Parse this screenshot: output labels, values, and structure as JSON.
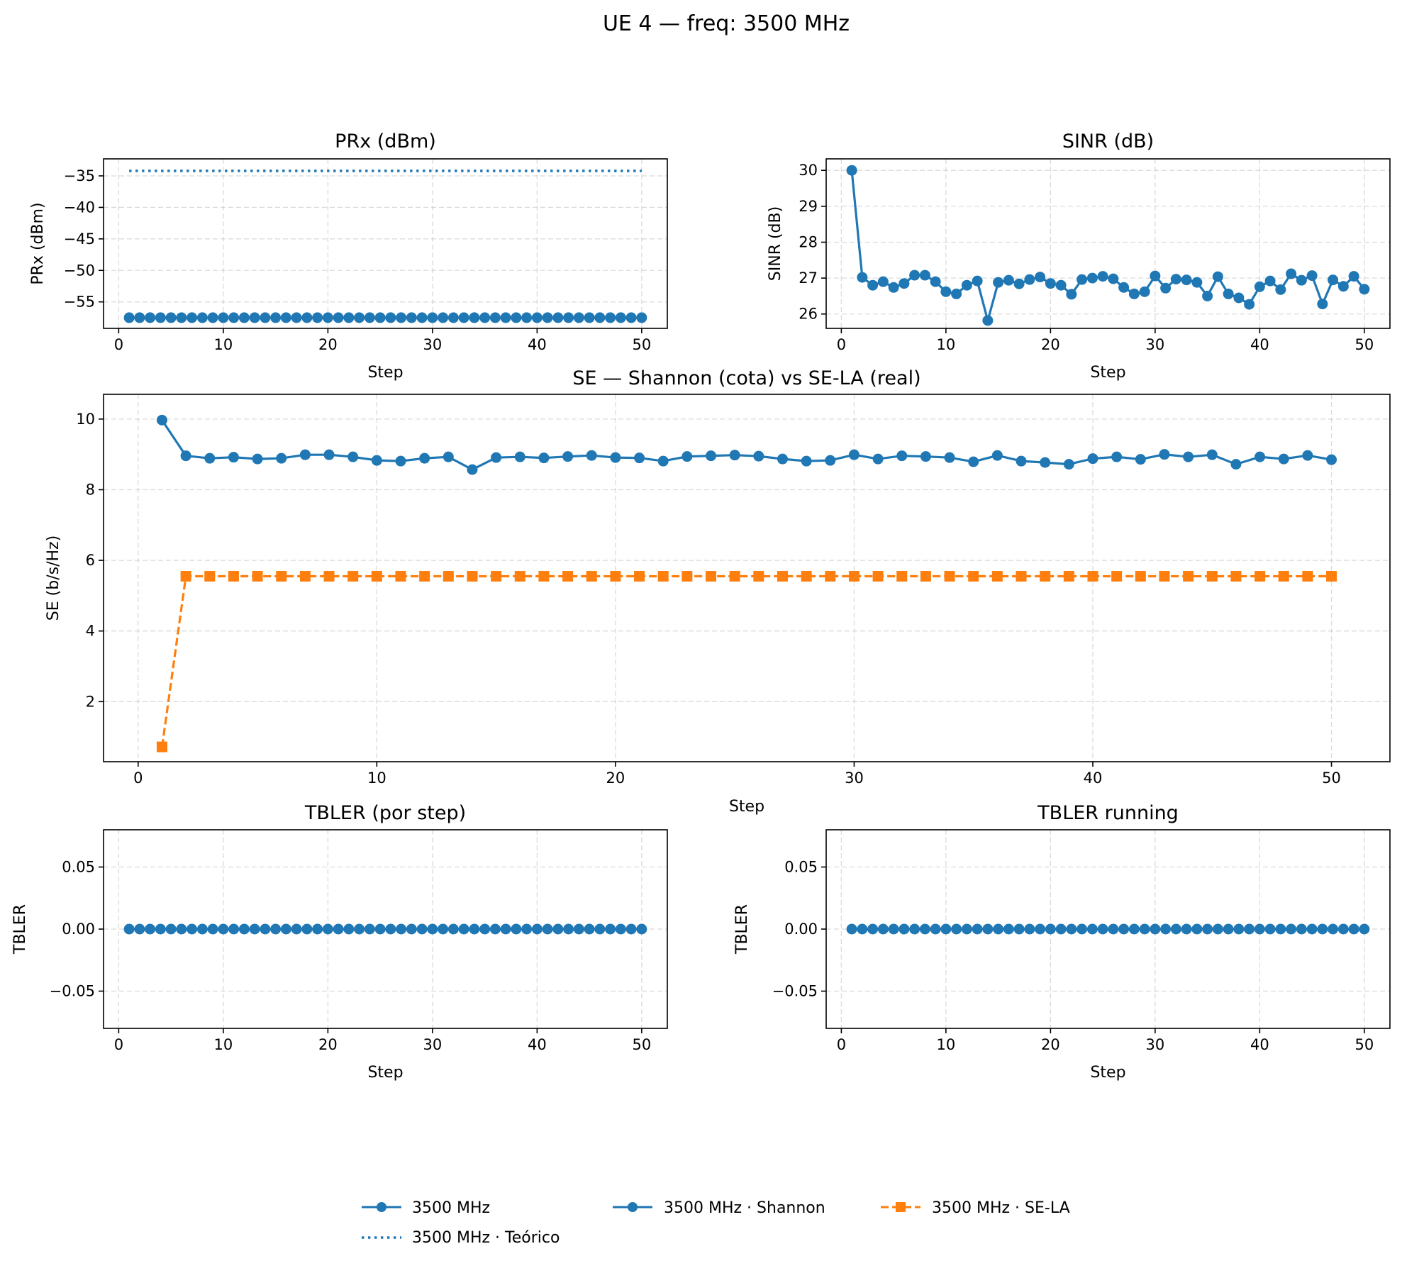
{
  "figure": {
    "suptitle": "UE 4 — freq: 3500 MHz",
    "colors": {
      "blue": "#1f77b4",
      "orange": "#ff7f0e",
      "grid": "#b0b0b0"
    }
  },
  "legend": {
    "placement": "bottom-center",
    "entries": [
      {
        "label": "3500 MHz",
        "color": "#1f77b4",
        "linestyle": "solid",
        "marker": "circle"
      },
      {
        "label": "3500 MHz · Teórico",
        "color": "#1f77b4",
        "linestyle": "dotted",
        "marker": "none"
      },
      {
        "label": "3500 MHz · Shannon",
        "color": "#1f77b4",
        "linestyle": "solid",
        "marker": "circle"
      },
      {
        "label": "3500 MHz · SE-LA",
        "color": "#ff7f0e",
        "linestyle": "dashed",
        "marker": "square"
      }
    ]
  },
  "chart_data": [
    {
      "id": "prx",
      "type": "line",
      "title": "PRx (dBm)",
      "xlabel": "Step",
      "ylabel": "PRx (dBm)",
      "xlim": [
        -1.45,
        52.45
      ],
      "ylim": [
        -59.2,
        -32.3
      ],
      "xticks": [
        0,
        10,
        20,
        30,
        40,
        50
      ],
      "yticks": [
        -55,
        -50,
        -45,
        -40,
        -35
      ],
      "ytick_labels": [
        "−55",
        "−50",
        "−45",
        "−40",
        "−35"
      ],
      "grid": true,
      "x_start": 1,
      "series": [
        {
          "name": "3500 MHz",
          "color": "#1f77b4",
          "linestyle": "solid",
          "marker": "circle",
          "values": [
            -57.5,
            -57.5,
            -57.5,
            -57.5,
            -57.5,
            -57.5,
            -57.5,
            -57.5,
            -57.5,
            -57.5,
            -57.5,
            -57.5,
            -57.5,
            -57.5,
            -57.5,
            -57.5,
            -57.5,
            -57.5,
            -57.5,
            -57.5,
            -57.5,
            -57.5,
            -57.5,
            -57.5,
            -57.5,
            -57.5,
            -57.5,
            -57.5,
            -57.5,
            -57.5,
            -57.5,
            -57.5,
            -57.5,
            -57.5,
            -57.5,
            -57.5,
            -57.5,
            -57.5,
            -57.5,
            -57.5,
            -57.5,
            -57.5,
            -57.5,
            -57.5,
            -57.5,
            -57.5,
            -57.5,
            -57.5,
            -57.5,
            -57.5
          ]
        },
        {
          "name": "3500 MHz · Teórico",
          "color": "#1f77b4",
          "linestyle": "dotted",
          "marker": "none",
          "values": [
            -34.2,
            -34.2,
            -34.2,
            -34.2,
            -34.2,
            -34.2,
            -34.2,
            -34.2,
            -34.2,
            -34.2,
            -34.2,
            -34.2,
            -34.2,
            -34.2,
            -34.2,
            -34.2,
            -34.2,
            -34.2,
            -34.2,
            -34.2,
            -34.2,
            -34.2,
            -34.2,
            -34.2,
            -34.2,
            -34.2,
            -34.2,
            -34.2,
            -34.2,
            -34.2,
            -34.2,
            -34.2,
            -34.2,
            -34.2,
            -34.2,
            -34.2,
            -34.2,
            -34.2,
            -34.2,
            -34.2,
            -34.2,
            -34.2,
            -34.2,
            -34.2,
            -34.2,
            -34.2,
            -34.2,
            -34.2,
            -34.2,
            -34.2
          ]
        }
      ]
    },
    {
      "id": "sinr",
      "type": "line",
      "title": "SINR (dB)",
      "xlabel": "Step",
      "ylabel": "SINR (dB)",
      "xlim": [
        -1.45,
        52.45
      ],
      "ylim": [
        25.6,
        30.32
      ],
      "xticks": [
        0,
        10,
        20,
        30,
        40,
        50
      ],
      "yticks": [
        26,
        27,
        28,
        29,
        30
      ],
      "grid": true,
      "x_start": 1,
      "series": [
        {
          "name": "3500 MHz",
          "color": "#1f77b4",
          "linestyle": "solid",
          "marker": "circle",
          "values": [
            30.0,
            27.02,
            26.8,
            26.9,
            26.74,
            26.85,
            27.08,
            27.08,
            26.9,
            26.62,
            26.56,
            26.8,
            26.92,
            25.82,
            26.88,
            26.94,
            26.84,
            26.96,
            27.03,
            26.85,
            26.8,
            26.55,
            26.96,
            27.0,
            27.05,
            26.98,
            26.74,
            26.56,
            26.62,
            27.06,
            26.72,
            26.97,
            26.95,
            26.88,
            26.5,
            27.04,
            26.56,
            26.45,
            26.27,
            26.76,
            26.92,
            26.68,
            27.12,
            26.94,
            27.07,
            26.28,
            26.95,
            26.77,
            27.05,
            26.69
          ]
        }
      ]
    },
    {
      "id": "se",
      "type": "line",
      "title": "SE — Shannon (cota) vs SE-LA (real)",
      "xlabel": "Step",
      "ylabel": "SE (b/s/Hz)",
      "xlim": [
        -1.45,
        52.45
      ],
      "ylim": [
        0.3,
        10.7
      ],
      "xticks": [
        0,
        10,
        20,
        30,
        40,
        50
      ],
      "yticks": [
        2,
        4,
        6,
        8,
        10
      ],
      "grid": true,
      "x_start": 1,
      "series": [
        {
          "name": "3500 MHz · Shannon",
          "color": "#1f77b4",
          "linestyle": "solid",
          "marker": "circle",
          "values": [
            9.97,
            8.96,
            8.89,
            8.92,
            8.87,
            8.89,
            8.99,
            8.99,
            8.93,
            8.83,
            8.81,
            8.89,
            8.93,
            8.57,
            8.91,
            8.93,
            8.9,
            8.94,
            8.97,
            8.91,
            8.9,
            8.81,
            8.94,
            8.96,
            8.98,
            8.95,
            8.87,
            8.81,
            8.83,
            8.99,
            8.87,
            8.96,
            8.94,
            8.91,
            8.79,
            8.97,
            8.81,
            8.77,
            8.72,
            8.88,
            8.93,
            8.86,
            9.0,
            8.93,
            8.99,
            8.72,
            8.93,
            8.87,
            8.97,
            8.85
          ]
        },
        {
          "name": "3500 MHz · SE-LA",
          "color": "#ff7f0e",
          "linestyle": "dashed",
          "marker": "square",
          "values": [
            0.72,
            5.55,
            5.55,
            5.55,
            5.55,
            5.55,
            5.55,
            5.55,
            5.55,
            5.55,
            5.55,
            5.55,
            5.55,
            5.55,
            5.55,
            5.55,
            5.55,
            5.55,
            5.55,
            5.55,
            5.55,
            5.55,
            5.55,
            5.55,
            5.55,
            5.55,
            5.55,
            5.55,
            5.55,
            5.55,
            5.55,
            5.55,
            5.55,
            5.55,
            5.55,
            5.55,
            5.55,
            5.55,
            5.55,
            5.55,
            5.55,
            5.55,
            5.55,
            5.55,
            5.55,
            5.55,
            5.55,
            5.55,
            5.55,
            5.55
          ]
        }
      ]
    },
    {
      "id": "tbler",
      "type": "line",
      "title": "TBLER (por step)",
      "xlabel": "Step",
      "ylabel": "TBLER",
      "xlim": [
        -1.45,
        52.45
      ],
      "ylim": [
        -0.08,
        0.08
      ],
      "xticks": [
        0,
        10,
        20,
        30,
        40,
        50
      ],
      "yticks": [
        -0.05,
        0,
        0.05
      ],
      "ytick_labels": [
        "−0.05",
        "0.00",
        "0.05"
      ],
      "grid": true,
      "x_start": 1,
      "series": [
        {
          "name": "3500 MHz",
          "color": "#1f77b4",
          "linestyle": "solid",
          "marker": "circle",
          "values": [
            0,
            0,
            0,
            0,
            0,
            0,
            0,
            0,
            0,
            0,
            0,
            0,
            0,
            0,
            0,
            0,
            0,
            0,
            0,
            0,
            0,
            0,
            0,
            0,
            0,
            0,
            0,
            0,
            0,
            0,
            0,
            0,
            0,
            0,
            0,
            0,
            0,
            0,
            0,
            0,
            0,
            0,
            0,
            0,
            0,
            0,
            0,
            0,
            0,
            0
          ]
        }
      ]
    },
    {
      "id": "tbler_running",
      "type": "line",
      "title": "TBLER running",
      "xlabel": "Step",
      "ylabel": "TBLER",
      "xlim": [
        -1.45,
        52.45
      ],
      "ylim": [
        -0.08,
        0.08
      ],
      "xticks": [
        0,
        10,
        20,
        30,
        40,
        50
      ],
      "yticks": [
        -0.05,
        0,
        0.05
      ],
      "ytick_labels": [
        "−0.05",
        "0.00",
        "0.05"
      ],
      "grid": true,
      "x_start": 1,
      "series": [
        {
          "name": "3500 MHz",
          "color": "#1f77b4",
          "linestyle": "solid",
          "marker": "circle",
          "values": [
            0,
            0,
            0,
            0,
            0,
            0,
            0,
            0,
            0,
            0,
            0,
            0,
            0,
            0,
            0,
            0,
            0,
            0,
            0,
            0,
            0,
            0,
            0,
            0,
            0,
            0,
            0,
            0,
            0,
            0,
            0,
            0,
            0,
            0,
            0,
            0,
            0,
            0,
            0,
            0,
            0,
            0,
            0,
            0,
            0,
            0,
            0,
            0,
            0,
            0
          ]
        }
      ]
    }
  ]
}
